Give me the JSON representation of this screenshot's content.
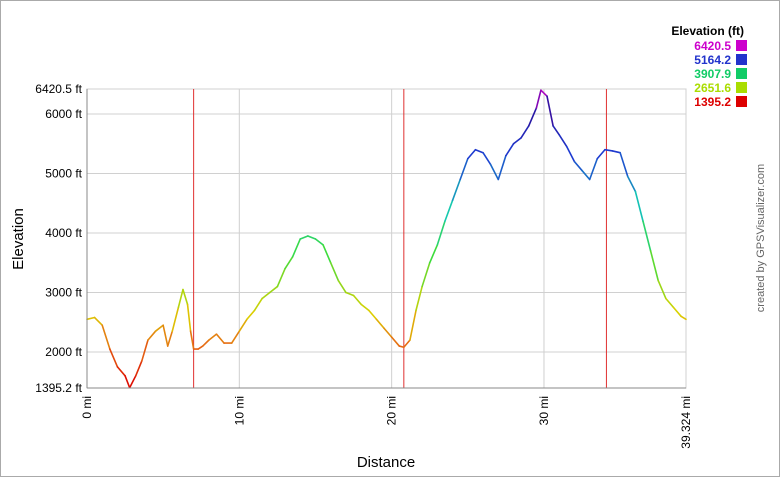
{
  "chart_data": {
    "type": "line",
    "xlabel": "Distance",
    "ylabel": "Elevation",
    "xlim": [
      0,
      39.324
    ],
    "ylim": [
      1395.2,
      6420.5
    ],
    "x_ticks": [
      {
        "value": 0,
        "label": "0 mi"
      },
      {
        "value": 10,
        "label": "10 mi"
      },
      {
        "value": 20,
        "label": "20 mi"
      },
      {
        "value": 30,
        "label": "30 mi"
      },
      {
        "value": 39.324,
        "label": "39.324 mi"
      }
    ],
    "y_ticks": [
      {
        "value": 1395.2,
        "label": "1395.2 ft"
      },
      {
        "value": 2000,
        "label": "2000 ft"
      },
      {
        "value": 3000,
        "label": "3000 ft"
      },
      {
        "value": 4000,
        "label": "4000 ft"
      },
      {
        "value": 5000,
        "label": "5000 ft"
      },
      {
        "value": 6000,
        "label": "6000 ft"
      },
      {
        "value": 6420.5,
        "label": "6420.5 ft"
      }
    ],
    "grid": true,
    "markers_mi": [
      7.0,
      20.8,
      34.1
    ],
    "marker_color": "#e03030",
    "legend": {
      "title": "Elevation (ft)",
      "placement": "top-right",
      "entries": [
        {
          "label": "6420.5",
          "color": "#cc00cc"
        },
        {
          "label": "5164.2",
          "color": "#2233cc"
        },
        {
          "label": "3907.9",
          "color": "#11cc66"
        },
        {
          "label": "2651.6",
          "color": "#aadd00"
        },
        {
          "label": "1395.2",
          "color": "#dd0000"
        }
      ]
    },
    "credit": "created by GPSVisualizer.com",
    "series": [
      {
        "x": [
          0,
          0.5,
          1,
          1.5,
          2,
          2.5,
          2.8,
          3.2,
          3.6,
          4,
          4.5,
          5,
          5.3,
          5.6,
          6,
          6.3,
          6.6,
          6.8,
          7,
          7.3,
          7.6,
          8,
          8.5,
          9,
          9.5,
          10,
          10.5,
          11,
          11.5,
          12,
          12.5,
          13,
          13.5,
          14,
          14.5,
          15,
          15.5,
          16,
          16.5,
          17,
          17.5,
          18,
          18.5,
          19,
          19.5,
          20,
          20.5,
          20.8,
          21.2,
          21.6,
          22,
          22.5,
          23,
          23.5,
          24,
          24.5,
          25,
          25.5,
          26,
          26.5,
          27,
          27.5,
          28,
          28.5,
          29,
          29.5,
          29.8,
          30.2,
          30.6,
          31,
          31.5,
          32,
          32.5,
          33,
          33.5,
          34,
          34.5,
          35,
          35.5,
          36,
          36.5,
          37,
          37.5,
          38,
          38.5,
          39,
          39.324
        ],
        "values": [
          2550,
          2580,
          2450,
          2050,
          1750,
          1600,
          1400,
          1600,
          1850,
          2200,
          2350,
          2450,
          2100,
          2350,
          2750,
          3050,
          2800,
          2350,
          2050,
          2050,
          2100,
          2200,
          2300,
          2150,
          2150,
          2350,
          2550,
          2700,
          2900,
          3000,
          3100,
          3400,
          3600,
          3900,
          3950,
          3900,
          3800,
          3500,
          3200,
          3000,
          2950,
          2800,
          2700,
          2550,
          2400,
          2250,
          2100,
          2080,
          2200,
          2700,
          3100,
          3500,
          3800,
          4200,
          4550,
          4900,
          5250,
          5400,
          5350,
          5150,
          4900,
          5300,
          5500,
          5600,
          5800,
          6100,
          6400,
          6300,
          5800,
          5650,
          5450,
          5200,
          5050,
          4900,
          5250,
          5400,
          5380,
          5350,
          4950,
          4700,
          4200,
          3700,
          3200,
          2900,
          2750,
          2600,
          2550
        ]
      }
    ]
  }
}
